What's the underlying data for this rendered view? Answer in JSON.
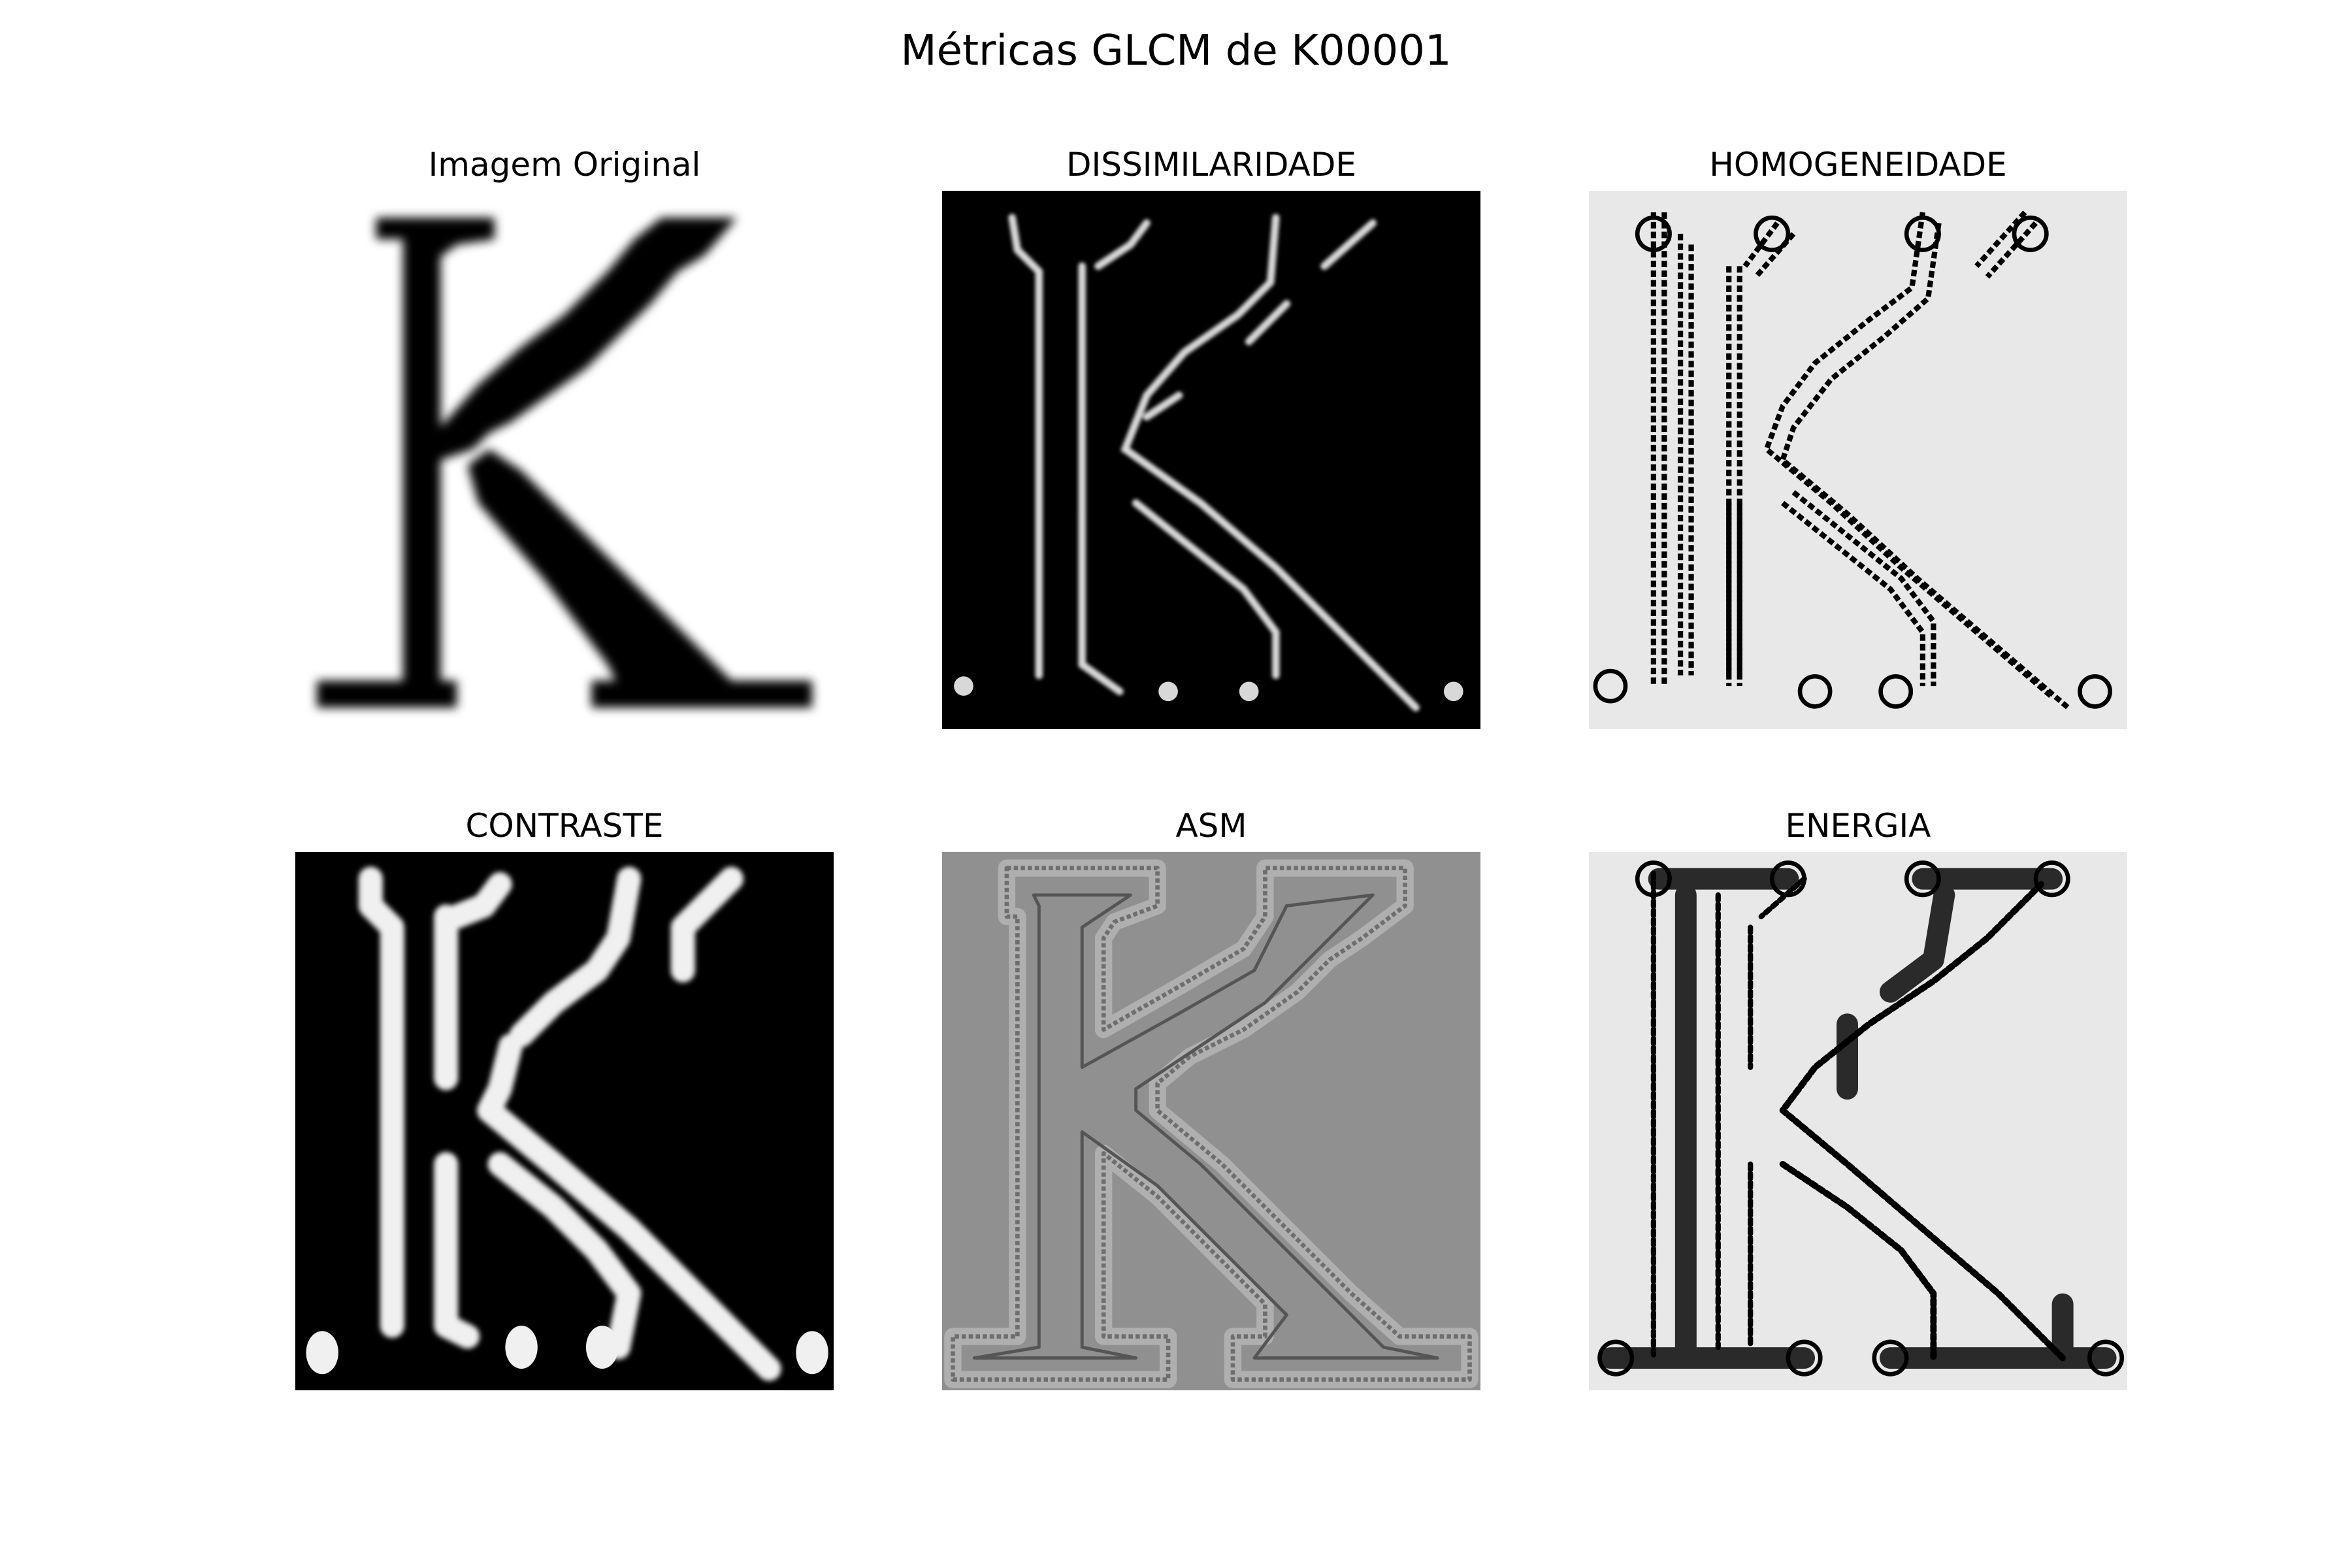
{
  "figure": {
    "title": "Métricas GLCM de K00001"
  },
  "panels": [
    {
      "title": "Imagem Original",
      "style": "original",
      "background": "#ffffff"
    },
    {
      "title": "DISSIMILARIDADE",
      "style": "dark-edges",
      "background": "#000000"
    },
    {
      "title": "HOMOGENEIDADE",
      "style": "light-noisy-edges",
      "background": "#e8e8e8"
    },
    {
      "title": "CONTRASTE",
      "style": "dark-thick-edges",
      "background": "#000000"
    },
    {
      "title": "ASM",
      "style": "grey-outline",
      "background": "#909090"
    },
    {
      "title": "ENERGIA",
      "style": "light-dark-outline",
      "background": "#e8e8e8"
    }
  ]
}
